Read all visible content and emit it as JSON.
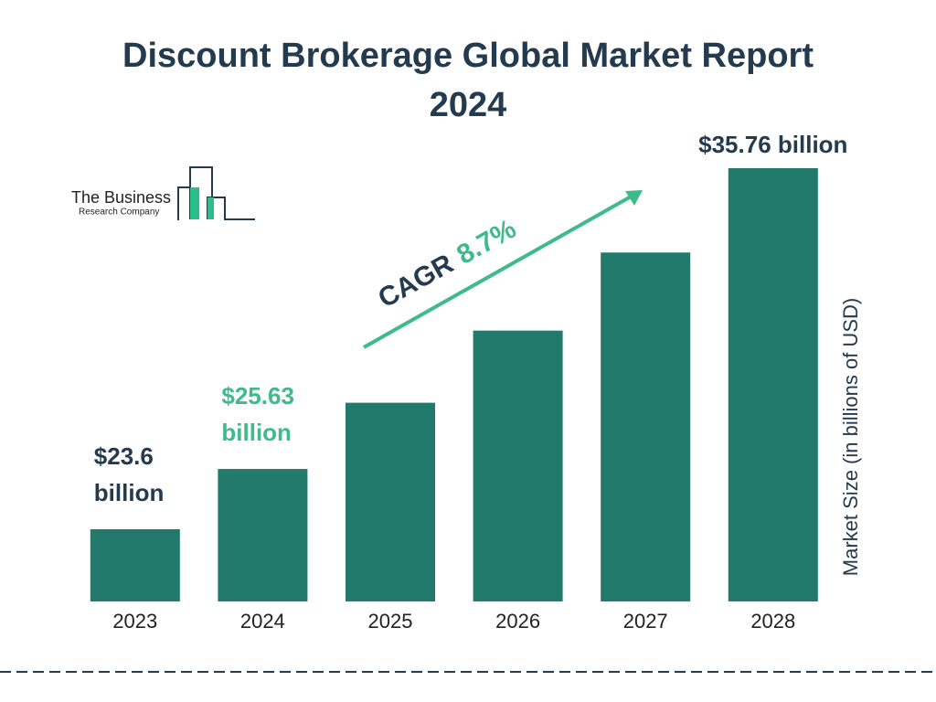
{
  "logo": {
    "name": "The Business",
    "subname": "Research Company"
  },
  "chart_data": {
    "type": "bar",
    "title": "Discount Brokerage Global Market Report 2024",
    "y_label": "Market Size (in billions of USD)",
    "annotations": {
      "cagr_label": "CAGR",
      "cagr_value": "8.7%"
    },
    "categories": [
      "2023",
      "2024",
      "2025",
      "2026",
      "2027",
      "2028"
    ],
    "values": [
      23.6,
      25.63,
      27.86,
      30.29,
      32.92,
      35.76
    ],
    "value_labels": [
      "$23.6 billion",
      "$25.63 billion",
      null,
      null,
      null,
      "$35.76 billion"
    ],
    "color": "#217a6b"
  }
}
